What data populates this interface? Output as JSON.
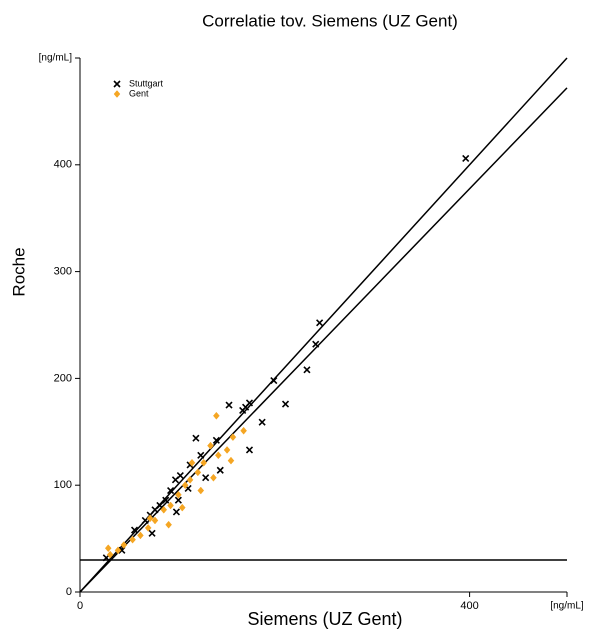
{
  "chart_data": {
    "type": "scatter",
    "title": "Correlatie  tov. Siemens (UZ Gent)",
    "x_label": "Siemens (UZ Gent)",
    "y_label": "Roche",
    "xlim": [
      0,
      500
    ],
    "ylim": [
      0,
      500
    ],
    "xticks": [
      0,
      400,
      {
        "value": 500,
        "label": "[ng/mL]"
      }
    ],
    "yticks": [
      0,
      100,
      200,
      300,
      400,
      {
        "value": 500,
        "label": "[ng/mL]"
      }
    ],
    "grid": false,
    "legend": "upper-left",
    "series": [
      {
        "name": "Stuttgart",
        "color": "#000000",
        "marker": "x",
        "x": [
          396,
          246,
          242,
          233,
          211,
          199,
          187,
          174,
          170,
          167,
          174,
          153,
          144,
          140,
          124,
          119,
          113,
          103,
          98,
          93,
          88,
          82,
          77,
          72,
          67,
          74,
          56,
          43,
          27,
          99,
          101,
          111,
          129
        ],
        "values": [
          406,
          252,
          232,
          208,
          176,
          198,
          159,
          177,
          173,
          170,
          133,
          175,
          114,
          142,
          128,
          144,
          119,
          109,
          105,
          95,
          86,
          81,
          77,
          72,
          67,
          55,
          58,
          39,
          32,
          75,
          86,
          97,
          107
        ]
      },
      {
        "name": "Gent",
        "color": "#f5a623",
        "marker": "diamond",
        "x": [
          140,
          168,
          157,
          142,
          134,
          127,
          121,
          113,
          108,
          101,
          93,
          86,
          77,
          70,
          62,
          54,
          45,
          39,
          31,
          29,
          155,
          137,
          124,
          105,
          91,
          72,
          115,
          151
        ],
        "values": [
          165,
          151,
          145,
          128,
          137,
          121,
          112,
          105,
          100,
          91,
          81,
          77,
          67,
          60,
          53,
          49,
          44,
          39,
          35,
          41,
          123,
          107,
          95,
          79,
          63,
          69,
          121,
          133
        ]
      }
    ],
    "lines": [
      {
        "color": "#000000",
        "x": [
          0,
          500
        ],
        "y": [
          0,
          500
        ]
      },
      {
        "color": "#000000",
        "x": [
          0,
          500
        ],
        "y": [
          0,
          472
        ]
      },
      {
        "color": "#000000",
        "x": [
          0,
          500
        ],
        "y": [
          30,
          30
        ]
      }
    ]
  }
}
